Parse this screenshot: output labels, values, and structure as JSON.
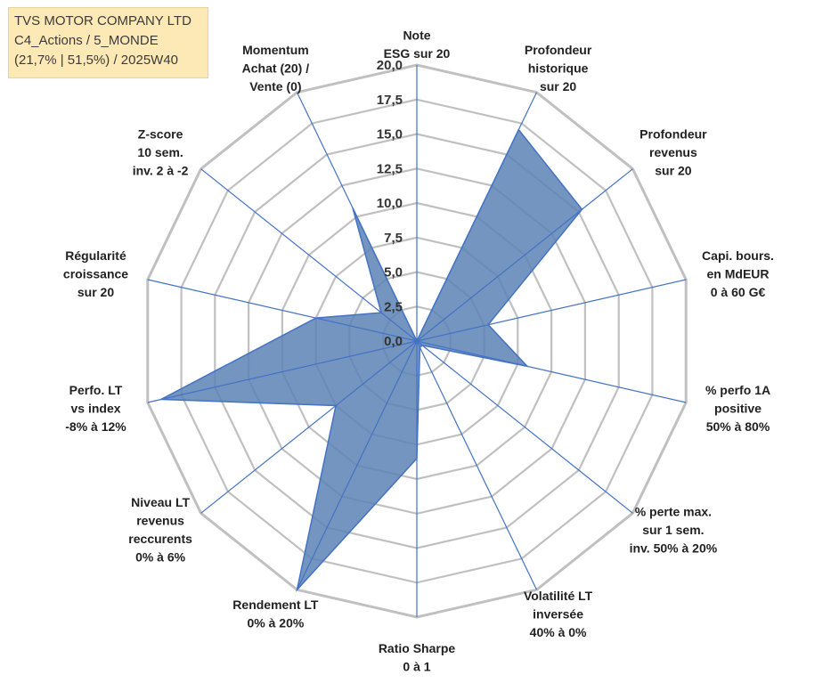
{
  "header": {
    "company": "TVS MOTOR COMPANY LTD",
    "category": "C4_Actions / 5_MONDE",
    "stats": "(21,7% | 51,5%) / 2025W40"
  },
  "chart_data": {
    "type": "radar",
    "r_range": [
      0,
      20
    ],
    "ticks": [
      "0,0",
      "2,5",
      "5,0",
      "7,5",
      "10,0",
      "12,5",
      "15,0",
      "17,5",
      "20,0"
    ],
    "axes": [
      {
        "label": [
          "Note",
          "ESG sur 20"
        ],
        "value": 0
      },
      {
        "label": [
          "Profondeur",
          "historique",
          "sur 20"
        ],
        "value": 17
      },
      {
        "label": [
          "Profondeur",
          "revenus",
          "sur 20"
        ],
        "value": 15.3
      },
      {
        "label": [
          "Capi. bours.",
          "en MdEUR",
          "0 à 60 G€"
        ],
        "value": 5.3
      },
      {
        "label": [
          "% perfo 1A",
          "positive",
          "50% à 80%"
        ],
        "value": 8.2
      },
      {
        "label": [
          "% perte max.",
          "sur 1 sem.",
          "inv. 50% à 20%"
        ],
        "value": 0.5
      },
      {
        "label": [
          "Volatilité LT",
          "inversée",
          "40% à 0%"
        ],
        "value": 0.5
      },
      {
        "label": [
          "Ratio Sharpe",
          "0 à 1"
        ],
        "value": 8.5
      },
      {
        "label": [
          "Rendement LT",
          "0% à 20%"
        ],
        "value": 20
      },
      {
        "label": [
          "Niveau LT",
          "revenus",
          "reccurents",
          "0% à 6%"
        ],
        "value": 7.5
      },
      {
        "label": [
          "Perfo. LT",
          "vs index",
          "-8% à 12%"
        ],
        "value": 19
      },
      {
        "label": [
          "Régularité",
          "croissance",
          "sur 20"
        ],
        "value": 7.5
      },
      {
        "label": [
          "Z-score",
          "10 sem.",
          "inv. 2 à -2"
        ],
        "value": 3.3
      },
      {
        "label": [
          "Momentum",
          "Achat (20) /",
          "Vente (0)"
        ],
        "value": 10.7
      }
    ],
    "colors": {
      "fill": "#5b82b5",
      "stroke": "#4472c4",
      "grid": "#c0c0c0",
      "spoke": "#4472c4"
    }
  }
}
